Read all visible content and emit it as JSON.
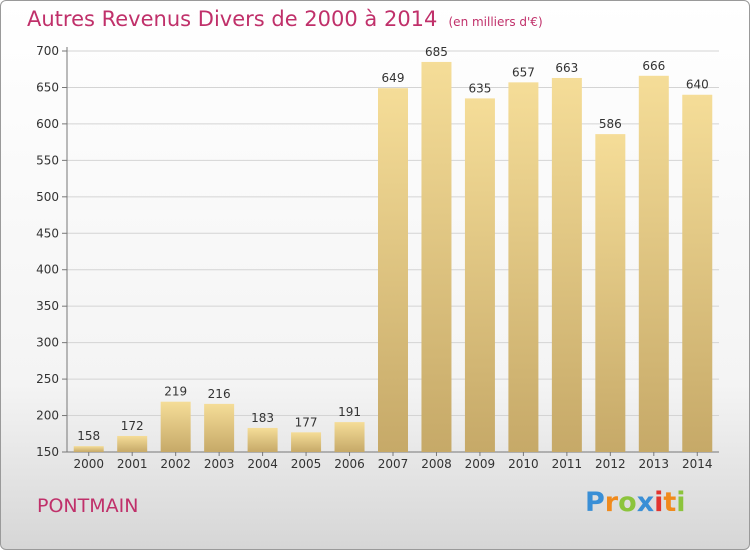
{
  "chart_data": {
    "type": "bar",
    "title": "Autres Revenus Divers de 2000 à 2014",
    "subtitle": "(en milliers d'€)",
    "categories": [
      "2000",
      "2001",
      "2002",
      "2003",
      "2004",
      "2005",
      "2006",
      "2007",
      "2008",
      "2009",
      "2010",
      "2011",
      "2012",
      "2013",
      "2014"
    ],
    "values": [
      158,
      172,
      219,
      216,
      183,
      177,
      191,
      649,
      685,
      635,
      657,
      663,
      586,
      666,
      640
    ],
    "ylim": [
      150,
      700
    ],
    "yticks": [
      150,
      200,
      250,
      300,
      350,
      400,
      450,
      500,
      550,
      600,
      650,
      700
    ],
    "grid": true,
    "data_labels": true,
    "bar_color_top": "#f5dd98",
    "bar_color_bottom": "#c6a968"
  },
  "footer": {
    "place": "PONTMAIN",
    "brand_letters": [
      "P",
      "r",
      "o",
      "x",
      "i",
      "t",
      "i"
    ],
    "brand_colors": [
      "#3a8fd6",
      "#f08a1c",
      "#8cc43c",
      "#3a8fd6",
      "#e3342f",
      "#f08a1c",
      "#8cc43c"
    ]
  }
}
